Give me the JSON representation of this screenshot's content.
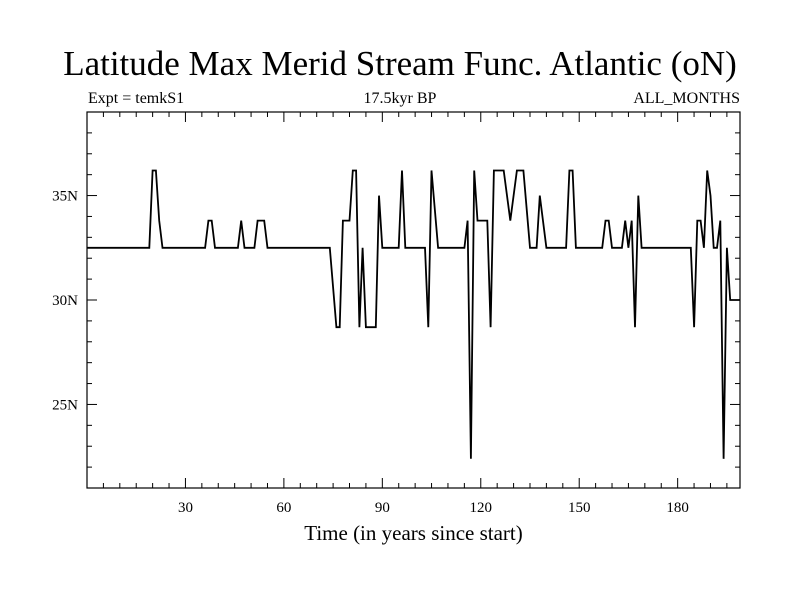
{
  "chart_data": {
    "type": "line",
    "title": "Latitude Max Merid Stream Func. Atlantic (oN)",
    "subtitle_left": "Expt = temkS1",
    "subtitle_center": "17.5kyr BP",
    "subtitle_right": "ALL_MONTHS",
    "xlabel": "Time (in years since start)",
    "ylabel": "",
    "xlim": [
      0,
      199
    ],
    "ylim": [
      21,
      39
    ],
    "xticks": [
      30,
      60,
      90,
      120,
      150,
      180
    ],
    "xtick_labels": [
      "30",
      "60",
      "90",
      "120",
      "150",
      "180"
    ],
    "yticks": [
      25,
      30,
      35
    ],
    "ytick_labels": [
      "25N",
      "30N",
      "35N"
    ],
    "grid": false,
    "series": [
      {
        "name": "",
        "color": "#000000",
        "x": [
          0,
          19,
          20,
          21,
          22,
          23,
          36,
          37,
          38,
          39,
          46,
          47,
          48,
          51,
          52,
          53,
          54,
          55,
          74,
          76,
          77,
          78,
          80,
          81,
          82,
          83,
          84,
          85,
          86,
          88,
          89,
          90,
          92,
          95,
          96,
          97,
          103,
          104,
          105,
          107,
          115,
          116,
          117,
          118,
          119,
          120,
          122,
          123,
          124,
          126,
          127,
          129,
          131,
          133,
          135,
          137,
          138,
          140,
          146,
          147,
          148,
          149,
          157,
          158,
          159,
          160,
          163,
          164,
          165,
          166,
          167,
          168,
          169,
          184,
          185,
          186,
          187,
          188,
          189,
          190,
          191,
          192,
          193,
          194,
          195,
          196,
          199
        ],
        "y": [
          32.5,
          32.5,
          36.2,
          36.2,
          33.8,
          32.5,
          32.5,
          33.8,
          33.8,
          32.5,
          32.5,
          33.8,
          32.5,
          32.5,
          33.8,
          33.8,
          33.8,
          32.5,
          32.5,
          28.7,
          28.7,
          33.8,
          33.8,
          36.2,
          36.2,
          28.7,
          32.5,
          28.7,
          28.7,
          28.7,
          35.0,
          32.5,
          32.5,
          32.5,
          36.2,
          32.5,
          32.5,
          28.7,
          36.2,
          32.5,
          32.5,
          33.8,
          22.4,
          36.2,
          33.8,
          33.8,
          33.8,
          28.7,
          36.2,
          36.2,
          36.2,
          33.8,
          36.2,
          36.2,
          32.5,
          32.5,
          35.0,
          32.5,
          32.5,
          36.2,
          36.2,
          32.5,
          32.5,
          33.8,
          33.8,
          32.5,
          32.5,
          33.8,
          32.5,
          33.8,
          28.7,
          35.0,
          32.5,
          32.5,
          28.7,
          33.8,
          33.8,
          32.5,
          36.2,
          35.0,
          32.5,
          32.5,
          33.8,
          22.4,
          32.5,
          30.0,
          30.0
        ]
      }
    ]
  }
}
